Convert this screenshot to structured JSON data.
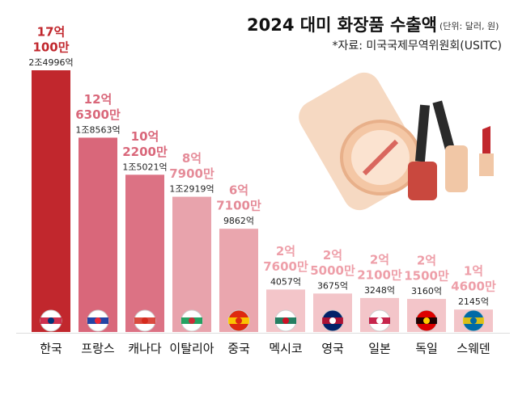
{
  "chart_data": {
    "type": "bar",
    "title": "2024 대미 화장품 수출액",
    "unit_note": "(단위: 달러, 원)",
    "source": "*자료: 미국국제무역위원회(USITC)",
    "categories": [
      "한국",
      "프랑스",
      "캐나다",
      "이탈리아",
      "중국",
      "멕시코",
      "영국",
      "일본",
      "독일",
      "스웨덴"
    ],
    "values": [
      1701000000,
      1263000000,
      1022000000,
      879000000,
      671000000,
      276000000,
      250000000,
      221000000,
      215000000,
      146000000
    ],
    "value_labels": [
      [
        "17억",
        "100만"
      ],
      [
        "12억",
        "6300만"
      ],
      [
        "10억",
        "2200만"
      ],
      [
        "8억",
        "7900만"
      ],
      [
        "6억",
        "7100만"
      ],
      [
        "2억",
        "7600만"
      ],
      [
        "2억",
        "5000만"
      ],
      [
        "2억",
        "2100만"
      ],
      [
        "2억",
        "1500만"
      ],
      [
        "1억",
        "4600만"
      ]
    ],
    "won_values": [
      2499600000000,
      1856300000000,
      1502100000000,
      1291900000000,
      986200000000,
      405700000000,
      367500000000,
      324800000000,
      316000000000,
      214500000000
    ],
    "won_value_labels": [
      "2조4996억",
      "1조8563억",
      "1조5021억",
      "1조2919억",
      "9862억",
      "4057억",
      "3675억",
      "3248억",
      "3160억",
      "2145억"
    ],
    "colors": [
      "#c1272d",
      "#d9677a",
      "#dc7284",
      "#e8a3ac",
      "#eaa6ae",
      "#f3c5c9",
      "#f3c5c9",
      "#f3c5c9",
      "#f3c5c9",
      "#f3c5c9"
    ],
    "label_colors": [
      "#c1272d",
      "#d9677a",
      "#d9677a",
      "#e58c99",
      "#e58c99",
      "#ee9fa9",
      "#ee9fa9",
      "#ee9fa9",
      "#ee9fa9",
      "#ee9fa9"
    ]
  }
}
